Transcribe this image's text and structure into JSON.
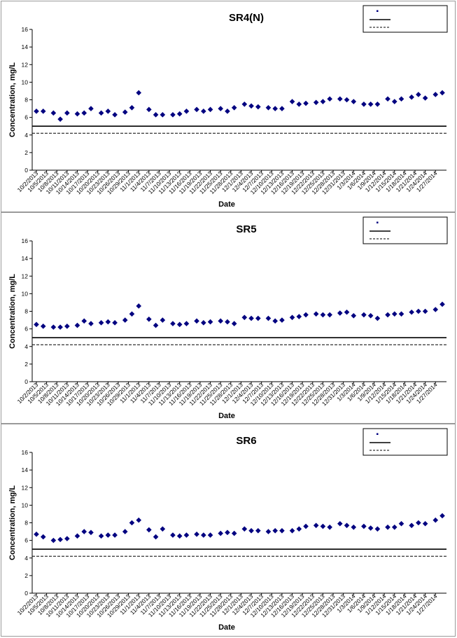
{
  "chart_data": [
    {
      "type": "scatter",
      "title": "SR4(N)",
      "xlabel": "Date",
      "ylabel": "Concentration, mg/L",
      "ylim": [
        0,
        16
      ],
      "yticks": [
        "0",
        "2",
        "4",
        "6",
        "8",
        "10",
        "12",
        "14",
        "16"
      ],
      "xtick_labels": [
        "10/2/2013",
        "10/5/2013",
        "10/8/2013",
        "10/11/2013",
        "10/14/2013",
        "10/17/2013",
        "10/20/2013",
        "10/23/2013",
        "10/26/2013",
        "10/29/2013",
        "11/1/2013",
        "11/4/2013",
        "11/7/2013",
        "11/10/2013",
        "11/13/2013",
        "11/16/2013",
        "11/19/2013",
        "11/22/2013",
        "11/25/2013",
        "11/28/2013",
        "12/1/2013",
        "12/4/2013",
        "12/7/2013",
        "12/10/2013",
        "12/13/2013",
        "12/16/2013",
        "12/19/2013",
        "12/22/2013",
        "12/25/2013",
        "12/28/2013",
        "12/31/2013",
        "1/3/2014",
        "1/6/2014",
        "1/9/2014",
        "1/12/2014",
        "1/15/2014",
        "1/18/2014",
        "1/21/2014",
        "1/24/2014",
        "1/27/2014"
      ],
      "x_range": [
        "10/2/2013",
        "1/29/2014"
      ],
      "grid": false,
      "legend_position": "top-right",
      "marker_color": "#000080",
      "points": [
        [
          "10/2/2013",
          6.7
        ],
        [
          "10/4/2013",
          6.7
        ],
        [
          "10/7/2013",
          6.5
        ],
        [
          "10/9/2013",
          5.8
        ],
        [
          "10/11/2013",
          6.5
        ],
        [
          "10/14/2013",
          6.4
        ],
        [
          "10/16/2013",
          6.5
        ],
        [
          "10/18/2013",
          7.0
        ],
        [
          "10/21/2013",
          6.5
        ],
        [
          "10/23/2013",
          6.7
        ],
        [
          "10/25/2013",
          6.3
        ],
        [
          "10/28/2013",
          6.6
        ],
        [
          "10/30/2013",
          7.1
        ],
        [
          "11/1/2013",
          8.8
        ],
        [
          "11/4/2013",
          6.9
        ],
        [
          "11/6/2013",
          6.3
        ],
        [
          "11/8/2013",
          6.3
        ],
        [
          "11/11/2013",
          6.3
        ],
        [
          "11/13/2013",
          6.4
        ],
        [
          "11/15/2013",
          6.7
        ],
        [
          "11/18/2013",
          6.9
        ],
        [
          "11/20/2013",
          6.7
        ],
        [
          "11/22/2013",
          6.9
        ],
        [
          "11/25/2013",
          7.0
        ],
        [
          "11/27/2013",
          6.7
        ],
        [
          "11/29/2013",
          7.1
        ],
        [
          "12/2/2013",
          7.5
        ],
        [
          "12/4/2013",
          7.3
        ],
        [
          "12/6/2013",
          7.2
        ],
        [
          "12/9/2013",
          7.1
        ],
        [
          "12/11/2013",
          7.0
        ],
        [
          "12/13/2013",
          7.0
        ],
        [
          "12/16/2013",
          7.8
        ],
        [
          "12/18/2013",
          7.5
        ],
        [
          "12/20/2013",
          7.6
        ],
        [
          "12/23/2013",
          7.7
        ],
        [
          "12/25/2013",
          7.8
        ],
        [
          "12/27/2013",
          8.1
        ],
        [
          "12/30/2013",
          8.1
        ],
        [
          "1/1/2014",
          8.0
        ],
        [
          "1/3/2014",
          7.8
        ],
        [
          "1/6/2014",
          7.5
        ],
        [
          "1/8/2014",
          7.5
        ],
        [
          "1/10/2014",
          7.5
        ],
        [
          "1/13/2014",
          8.1
        ],
        [
          "1/15/2014",
          7.8
        ],
        [
          "1/17/2014",
          8.1
        ],
        [
          "1/20/2014",
          8.3
        ],
        [
          "1/22/2014",
          8.6
        ],
        [
          "1/24/2014",
          8.2
        ],
        [
          "1/27/2014",
          8.6
        ],
        [
          "1/29/2014",
          8.8
        ]
      ],
      "hlines": [
        {
          "y": 5.0,
          "style": "solid",
          "color": "#000000"
        },
        {
          "y": 4.2,
          "style": "dashed",
          "color": "#000000"
        }
      ]
    },
    {
      "type": "scatter",
      "title": "SR5",
      "xlabel": "Date",
      "ylabel": "Concentration, mg/L",
      "ylim": [
        0,
        16
      ],
      "yticks": [
        "0",
        "2",
        "4",
        "6",
        "8",
        "10",
        "12",
        "14",
        "16"
      ],
      "xtick_labels": [
        "10/2/2013",
        "10/5/2013",
        "10/8/2013",
        "10/11/2013",
        "10/14/2013",
        "10/17/2013",
        "10/20/2013",
        "10/23/2013",
        "10/26/2013",
        "10/29/2013",
        "11/1/2013",
        "11/4/2013",
        "11/7/2013",
        "11/10/2013",
        "11/13/2013",
        "11/16/2013",
        "11/19/2013",
        "11/22/2013",
        "11/25/2013",
        "11/28/2013",
        "12/1/2013",
        "12/4/2013",
        "12/7/2013",
        "12/10/2013",
        "12/13/2013",
        "12/16/2013",
        "12/19/2013",
        "12/22/2013",
        "12/25/2013",
        "12/28/2013",
        "12/31/2013",
        "1/3/2014",
        "1/6/2014",
        "1/9/2014",
        "1/12/2014",
        "1/15/2014",
        "1/18/2014",
        "1/21/2014",
        "1/24/2014",
        "1/27/2014"
      ],
      "x_range": [
        "10/2/2013",
        "1/29/2014"
      ],
      "grid": false,
      "legend_position": "top-right",
      "marker_color": "#000080",
      "points": [
        [
          "10/2/2013",
          6.5
        ],
        [
          "10/4/2013",
          6.3
        ],
        [
          "10/7/2013",
          6.2
        ],
        [
          "10/9/2013",
          6.2
        ],
        [
          "10/11/2013",
          6.3
        ],
        [
          "10/14/2013",
          6.4
        ],
        [
          "10/16/2013",
          6.9
        ],
        [
          "10/18/2013",
          6.6
        ],
        [
          "10/21/2013",
          6.7
        ],
        [
          "10/23/2013",
          6.8
        ],
        [
          "10/25/2013",
          6.7
        ],
        [
          "10/28/2013",
          7.0
        ],
        [
          "10/30/2013",
          7.7
        ],
        [
          "11/1/2013",
          8.6
        ],
        [
          "11/4/2013",
          7.1
        ],
        [
          "11/6/2013",
          6.4
        ],
        [
          "11/8/2013",
          7.0
        ],
        [
          "11/11/2013",
          6.6
        ],
        [
          "11/13/2013",
          6.5
        ],
        [
          "11/15/2013",
          6.6
        ],
        [
          "11/18/2013",
          6.9
        ],
        [
          "11/20/2013",
          6.7
        ],
        [
          "11/22/2013",
          6.8
        ],
        [
          "11/25/2013",
          6.9
        ],
        [
          "11/27/2013",
          6.8
        ],
        [
          "11/29/2013",
          6.6
        ],
        [
          "12/2/2013",
          7.3
        ],
        [
          "12/4/2013",
          7.2
        ],
        [
          "12/6/2013",
          7.2
        ],
        [
          "12/9/2013",
          7.2
        ],
        [
          "12/11/2013",
          6.9
        ],
        [
          "12/13/2013",
          7.0
        ],
        [
          "12/16/2013",
          7.3
        ],
        [
          "12/18/2013",
          7.4
        ],
        [
          "12/20/2013",
          7.6
        ],
        [
          "12/23/2013",
          7.7
        ],
        [
          "12/25/2013",
          7.6
        ],
        [
          "12/27/2013",
          7.6
        ],
        [
          "12/30/2013",
          7.8
        ],
        [
          "1/1/2014",
          7.9
        ],
        [
          "1/3/2014",
          7.5
        ],
        [
          "1/6/2014",
          7.6
        ],
        [
          "1/8/2014",
          7.5
        ],
        [
          "1/10/2014",
          7.2
        ],
        [
          "1/13/2014",
          7.6
        ],
        [
          "1/15/2014",
          7.7
        ],
        [
          "1/17/2014",
          7.7
        ],
        [
          "1/20/2014",
          7.9
        ],
        [
          "1/22/2014",
          8.0
        ],
        [
          "1/24/2014",
          8.0
        ],
        [
          "1/27/2014",
          8.2
        ],
        [
          "1/29/2014",
          8.8
        ]
      ],
      "hlines": [
        {
          "y": 5.0,
          "style": "solid",
          "color": "#000000"
        },
        {
          "y": 4.2,
          "style": "dashed",
          "color": "#000000"
        }
      ]
    },
    {
      "type": "scatter",
      "title": "SR6",
      "xlabel": "Date",
      "ylabel": "Concentration, mg/L",
      "ylim": [
        0,
        16
      ],
      "yticks": [
        "0",
        "2",
        "4",
        "6",
        "8",
        "10",
        "12",
        "14",
        "16"
      ],
      "xtick_labels": [
        "10/2/2013",
        "10/5/2013",
        "10/8/2013",
        "10/11/2013",
        "10/14/2013",
        "10/17/2013",
        "10/20/2013",
        "10/23/2013",
        "10/26/2013",
        "10/29/2013",
        "11/1/2013",
        "11/4/2013",
        "11/7/2013",
        "11/10/2013",
        "11/13/2013",
        "11/16/2013",
        "11/19/2013",
        "11/22/2013",
        "11/25/2013",
        "11/28/2013",
        "12/1/2013",
        "12/4/2013",
        "12/7/2013",
        "12/10/2013",
        "12/13/2013",
        "12/16/2013",
        "12/19/2013",
        "12/22/2013",
        "12/25/2013",
        "12/28/2013",
        "12/31/2013",
        "1/3/2014",
        "1/6/2014",
        "1/9/2014",
        "1/12/2014",
        "1/15/2014",
        "1/18/2014",
        "1/21/2014",
        "1/24/2014",
        "1/27/2014"
      ],
      "x_range": [
        "10/2/2013",
        "1/29/2014"
      ],
      "grid": false,
      "legend_position": "top-right",
      "marker_color": "#000080",
      "points": [
        [
          "10/2/2013",
          6.7
        ],
        [
          "10/4/2013",
          6.4
        ],
        [
          "10/7/2013",
          6.0
        ],
        [
          "10/9/2013",
          6.1
        ],
        [
          "10/11/2013",
          6.2
        ],
        [
          "10/14/2013",
          6.5
        ],
        [
          "10/16/2013",
          7.0
        ],
        [
          "10/18/2013",
          6.9
        ],
        [
          "10/21/2013",
          6.5
        ],
        [
          "10/23/2013",
          6.6
        ],
        [
          "10/25/2013",
          6.6
        ],
        [
          "10/28/2013",
          7.0
        ],
        [
          "10/30/2013",
          8.0
        ],
        [
          "11/1/2013",
          8.3
        ],
        [
          "11/4/2013",
          7.2
        ],
        [
          "11/6/2013",
          6.4
        ],
        [
          "11/8/2013",
          7.3
        ],
        [
          "11/11/2013",
          6.6
        ],
        [
          "11/13/2013",
          6.5
        ],
        [
          "11/15/2013",
          6.6
        ],
        [
          "11/18/2013",
          6.7
        ],
        [
          "11/20/2013",
          6.6
        ],
        [
          "11/22/2013",
          6.6
        ],
        [
          "11/25/2013",
          6.8
        ],
        [
          "11/27/2013",
          6.9
        ],
        [
          "11/29/2013",
          6.8
        ],
        [
          "12/2/2013",
          7.3
        ],
        [
          "12/4/2013",
          7.1
        ],
        [
          "12/6/2013",
          7.1
        ],
        [
          "12/9/2013",
          7.0
        ],
        [
          "12/11/2013",
          7.1
        ],
        [
          "12/13/2013",
          7.1
        ],
        [
          "12/16/2013",
          7.1
        ],
        [
          "12/18/2013",
          7.3
        ],
        [
          "12/20/2013",
          7.6
        ],
        [
          "12/23/2013",
          7.7
        ],
        [
          "12/25/2013",
          7.6
        ],
        [
          "12/27/2013",
          7.5
        ],
        [
          "12/30/2013",
          7.9
        ],
        [
          "1/1/2014",
          7.7
        ],
        [
          "1/3/2014",
          7.5
        ],
        [
          "1/6/2014",
          7.6
        ],
        [
          "1/8/2014",
          7.4
        ],
        [
          "1/10/2014",
          7.3
        ],
        [
          "1/13/2014",
          7.5
        ],
        [
          "1/15/2014",
          7.5
        ],
        [
          "1/17/2014",
          7.9
        ],
        [
          "1/20/2014",
          7.7
        ],
        [
          "1/22/2014",
          8.0
        ],
        [
          "1/24/2014",
          7.9
        ],
        [
          "1/27/2014",
          8.3
        ],
        [
          "1/29/2014",
          8.8
        ]
      ],
      "hlines": [
        {
          "y": 5.0,
          "style": "solid",
          "color": "#000000"
        },
        {
          "y": 4.2,
          "style": "dashed",
          "color": "#000000"
        }
      ]
    }
  ]
}
